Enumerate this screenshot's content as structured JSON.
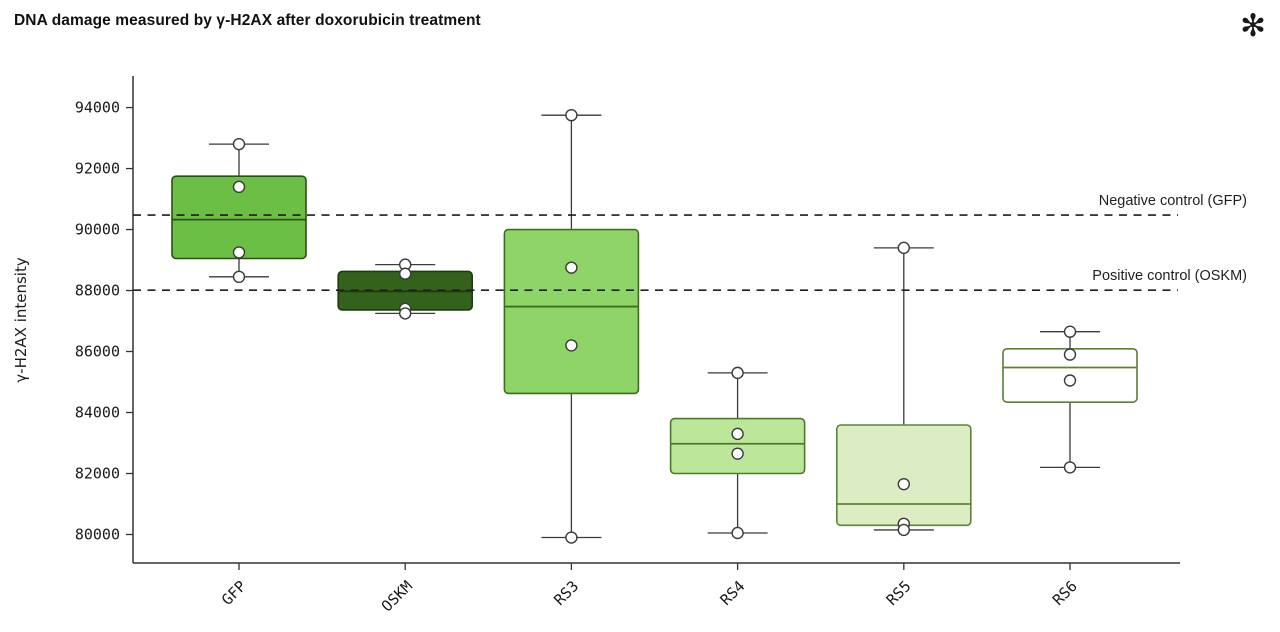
{
  "header": {
    "title": "DNA damage measured by γ-H2AX after doxorubicin treatment",
    "logo_glyph": "✻"
  },
  "chart_data": {
    "type": "box",
    "title": "DNA damage measured by γ-H2AX after doxorubicin treatment",
    "xlabel": "",
    "ylabel": "γ-H2AX intensity",
    "ylim": [
      79065,
      95035
    ],
    "yticks": [
      80000,
      82000,
      84000,
      86000,
      88000,
      90000,
      92000,
      94000
    ],
    "grid": false,
    "legend_position": "none",
    "categories": [
      "GFP",
      "OSKM",
      "RS3",
      "RS4",
      "RS5",
      "RS6"
    ],
    "groups": [
      {
        "name": "GFP",
        "fill": "#6cbf45",
        "stroke": "#2d5016",
        "points": [
          92800,
          91400,
          89250,
          88450
        ],
        "whisker_low": 88450,
        "q1": 89050,
        "median": 90325,
        "q3": 91750,
        "whisker_high": 92800
      },
      {
        "name": "OSKM",
        "fill": "#33621c",
        "stroke": "#1e3a0e",
        "points": [
          88850,
          88550,
          87400,
          87250
        ],
        "whisker_low": 87250,
        "q1": 87363,
        "median": 87975,
        "q3": 88625,
        "whisker_high": 88850
      },
      {
        "name": "RS3",
        "fill": "#8ed467",
        "stroke": "#3f6d1f",
        "points": [
          93750,
          88750,
          86200,
          79900
        ],
        "whisker_low": 79900,
        "q1": 84625,
        "median": 87475,
        "q3": 90000,
        "whisker_high": 93750
      },
      {
        "name": "RS4",
        "fill": "#bce79a",
        "stroke": "#4c7a26",
        "points": [
          85300,
          83300,
          82650,
          80050
        ],
        "whisker_low": 80050,
        "q1": 82000,
        "median": 82975,
        "q3": 83800,
        "whisker_high": 85300
      },
      {
        "name": "RS5",
        "fill": "#dcedc4",
        "stroke": "#5d8438",
        "points": [
          89400,
          81650,
          80350,
          80150
        ],
        "whisker_low": 80150,
        "q1": 80300,
        "median": 81000,
        "q3": 83590,
        "whisker_high": 89400
      },
      {
        "name": "RS6",
        "fill": "#ffffff",
        "stroke": "#5a7f35",
        "points": [
          86650,
          85900,
          85050,
          82200
        ],
        "whisker_low": 82200,
        "q1": 84340,
        "median": 85475,
        "q3": 86090,
        "whisker_high": 86650
      }
    ],
    "reference_lines": [
      {
        "id": "negative",
        "label": "Negative control (GFP)",
        "value": 90475
      },
      {
        "id": "positive",
        "label": "Positive control (OSKM)",
        "value": 88010
      }
    ],
    "point_style": {
      "fill": "#ffffff",
      "stroke": "#3a3a3a"
    },
    "axis_color": "#333333",
    "refline_color": "#1f1f1f"
  }
}
